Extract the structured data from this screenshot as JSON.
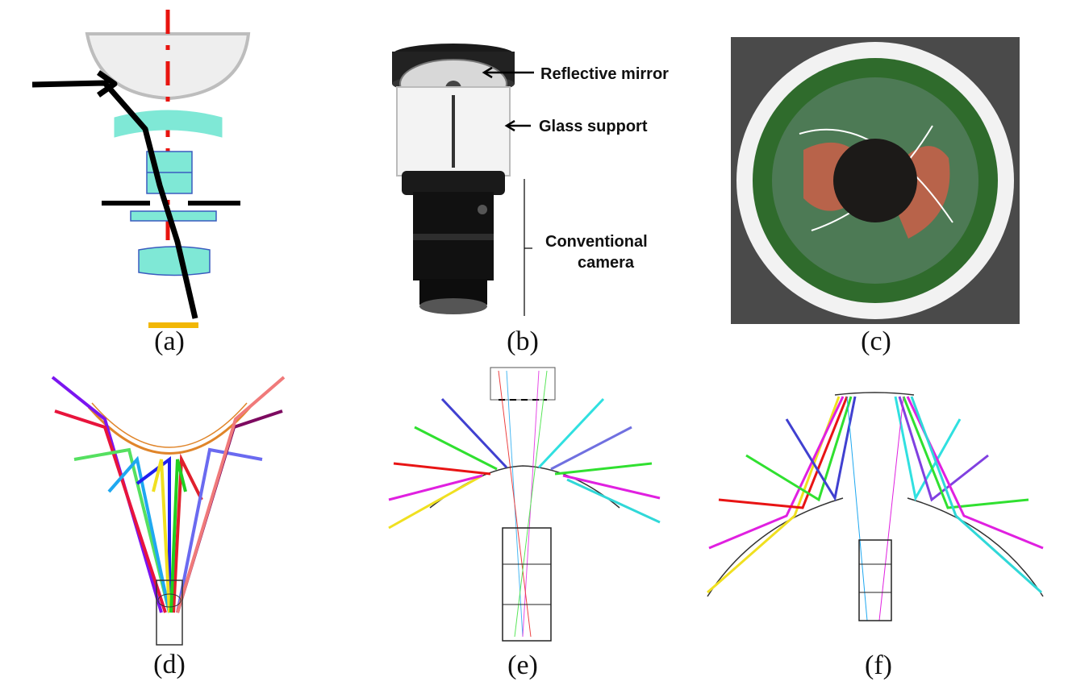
{
  "panels": {
    "a": {
      "caption": "(a)"
    },
    "b": {
      "caption": "(b)",
      "labels": {
        "mirror": "Reflective mirror",
        "glass": "Glass support",
        "camera_line1": "Conventional",
        "camera_line2": "camera"
      }
    },
    "c": {
      "caption": "(c)"
    },
    "d": {
      "caption": "(d)"
    },
    "e": {
      "caption": "(e)"
    },
    "f": {
      "caption": "(f)"
    }
  },
  "colors": {
    "lens": "#7fe8d6",
    "lens_edge": "#3a5bbf",
    "optical_axis": "#e8140f",
    "sensor": "#f2b705",
    "ray": "#000000",
    "mirror_fill": "#eeeeee"
  },
  "icons": {
    "b": "catadioptric-camera-photo",
    "c": "panoramic-fisheye-image"
  }
}
